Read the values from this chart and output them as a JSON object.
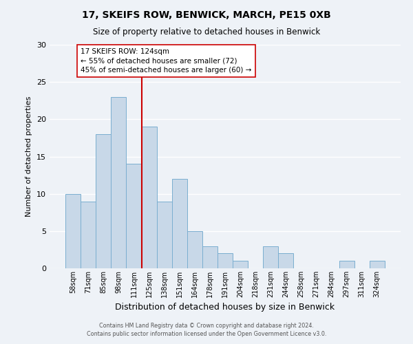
{
  "title": "17, SKEIFS ROW, BENWICK, MARCH, PE15 0XB",
  "subtitle": "Size of property relative to detached houses in Benwick",
  "xlabel": "Distribution of detached houses by size in Benwick",
  "ylabel": "Number of detached properties",
  "bar_labels": [
    "58sqm",
    "71sqm",
    "85sqm",
    "98sqm",
    "111sqm",
    "125sqm",
    "138sqm",
    "151sqm",
    "164sqm",
    "178sqm",
    "191sqm",
    "204sqm",
    "218sqm",
    "231sqm",
    "244sqm",
    "258sqm",
    "271sqm",
    "284sqm",
    "297sqm",
    "311sqm",
    "324sqm"
  ],
  "bar_values": [
    10,
    9,
    18,
    23,
    14,
    19,
    9,
    12,
    5,
    3,
    2,
    1,
    0,
    3,
    2,
    0,
    0,
    0,
    1,
    0,
    1
  ],
  "bar_color": "#c8d8e8",
  "bar_edge_color": "#7aaed0",
  "highlight_index": 5,
  "highlight_line_color": "#cc0000",
  "annotation_text_line1": "17 SKEIFS ROW: 124sqm",
  "annotation_text_line2": "← 55% of detached houses are smaller (72)",
  "annotation_text_line3": "45% of semi-detached houses are larger (60) →",
  "annotation_box_facecolor": "#ffffff",
  "annotation_box_edgecolor": "#cc0000",
  "ylim": [
    0,
    30
  ],
  "yticks": [
    0,
    5,
    10,
    15,
    20,
    25,
    30
  ],
  "footer_line1": "Contains HM Land Registry data © Crown copyright and database right 2024.",
  "footer_line2": "Contains public sector information licensed under the Open Government Licence v3.0.",
  "background_color": "#eef2f7",
  "grid_color": "#ffffff",
  "grid_linewidth": 1.0
}
